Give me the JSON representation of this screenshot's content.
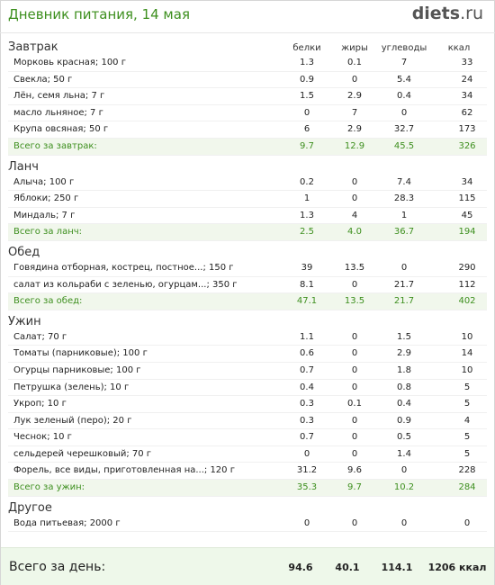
{
  "header": {
    "title": "Дневник питания, 14 мая",
    "logo_brand": "diets",
    "logo_tld": ".ru"
  },
  "columns": [
    "белки",
    "жиры",
    "углеводы",
    "ккал"
  ],
  "sections": [
    {
      "name": "Завтрак",
      "items": [
        {
          "name": "Морковь красная; 100 г",
          "protein": "1.3",
          "fat": "0.1",
          "carbs": "7",
          "kcal": "33"
        },
        {
          "name": "Свекла; 50 г",
          "protein": "0.9",
          "fat": "0",
          "carbs": "5.4",
          "kcal": "24"
        },
        {
          "name": "Лён, семя льна; 7 г",
          "protein": "1.5",
          "fat": "2.9",
          "carbs": "0.4",
          "kcal": "34"
        },
        {
          "name": "масло льняное; 7 г",
          "protein": "0",
          "fat": "7",
          "carbs": "0",
          "kcal": "62"
        },
        {
          "name": "Крупа овсяная; 50 г",
          "protein": "6",
          "fat": "2.9",
          "carbs": "32.7",
          "kcal": "173"
        }
      ],
      "total": {
        "label": "Всего за завтрак:",
        "protein": "9.7",
        "fat": "12.9",
        "carbs": "45.5",
        "kcal": "326"
      }
    },
    {
      "name": "Ланч",
      "items": [
        {
          "name": "Алыча; 100 г",
          "protein": "0.2",
          "fat": "0",
          "carbs": "7.4",
          "kcal": "34"
        },
        {
          "name": "Яблоки; 250 г",
          "protein": "1",
          "fat": "0",
          "carbs": "28.3",
          "kcal": "115"
        },
        {
          "name": "Миндаль; 7 г",
          "protein": "1.3",
          "fat": "4",
          "carbs": "1",
          "kcal": "45"
        }
      ],
      "total": {
        "label": "Всего за ланч:",
        "protein": "2.5",
        "fat": "4.0",
        "carbs": "36.7",
        "kcal": "194"
      }
    },
    {
      "name": "Обед",
      "items": [
        {
          "name": "Говядина отборная, кострец, постное...; 150 г",
          "protein": "39",
          "fat": "13.5",
          "carbs": "0",
          "kcal": "290"
        },
        {
          "name": "салат из кольраби с зеленью, огурцам...; 350 г",
          "protein": "8.1",
          "fat": "0",
          "carbs": "21.7",
          "kcal": "112"
        }
      ],
      "total": {
        "label": "Всего за обед:",
        "protein": "47.1",
        "fat": "13.5",
        "carbs": "21.7",
        "kcal": "402"
      }
    },
    {
      "name": "Ужин",
      "items": [
        {
          "name": "Салат; 70 г",
          "protein": "1.1",
          "fat": "0",
          "carbs": "1.5",
          "kcal": "10"
        },
        {
          "name": "Томаты (парниковые); 100 г",
          "protein": "0.6",
          "fat": "0",
          "carbs": "2.9",
          "kcal": "14"
        },
        {
          "name": "Огурцы парниковые; 100 г",
          "protein": "0.7",
          "fat": "0",
          "carbs": "1.8",
          "kcal": "10"
        },
        {
          "name": "Петрушка (зелень); 10 г",
          "protein": "0.4",
          "fat": "0",
          "carbs": "0.8",
          "kcal": "5"
        },
        {
          "name": "Укроп; 10 г",
          "protein": "0.3",
          "fat": "0.1",
          "carbs": "0.4",
          "kcal": "5"
        },
        {
          "name": "Лук зеленый (перо); 20 г",
          "protein": "0.3",
          "fat": "0",
          "carbs": "0.9",
          "kcal": "4"
        },
        {
          "name": "Чеснок; 10 г",
          "protein": "0.7",
          "fat": "0",
          "carbs": "0.5",
          "kcal": "5"
        },
        {
          "name": "сельдерей черешковый; 70 г",
          "protein": "0",
          "fat": "0",
          "carbs": "1.4",
          "kcal": "5"
        },
        {
          "name": "Форель, все виды, приготовленная на...; 120 г",
          "protein": "31.2",
          "fat": "9.6",
          "carbs": "0",
          "kcal": "228"
        }
      ],
      "total": {
        "label": "Всего за ужин:",
        "protein": "35.3",
        "fat": "9.7",
        "carbs": "10.2",
        "kcal": "284"
      }
    },
    {
      "name": "Другое",
      "items": [
        {
          "name": "Вода питьевая; 2000 г",
          "protein": "0",
          "fat": "0",
          "carbs": "0",
          "kcal": "0"
        }
      ],
      "total": null
    }
  ],
  "day_total": {
    "label": "Всего за день:",
    "protein": "94.6",
    "fat": "40.1",
    "carbs": "114.1",
    "kcal": "1206 ккал"
  },
  "colors": {
    "accent_green": "#3d8f1e",
    "total_row_bg": "#f1f7ec",
    "day_total_bg": "#eef8ea"
  }
}
